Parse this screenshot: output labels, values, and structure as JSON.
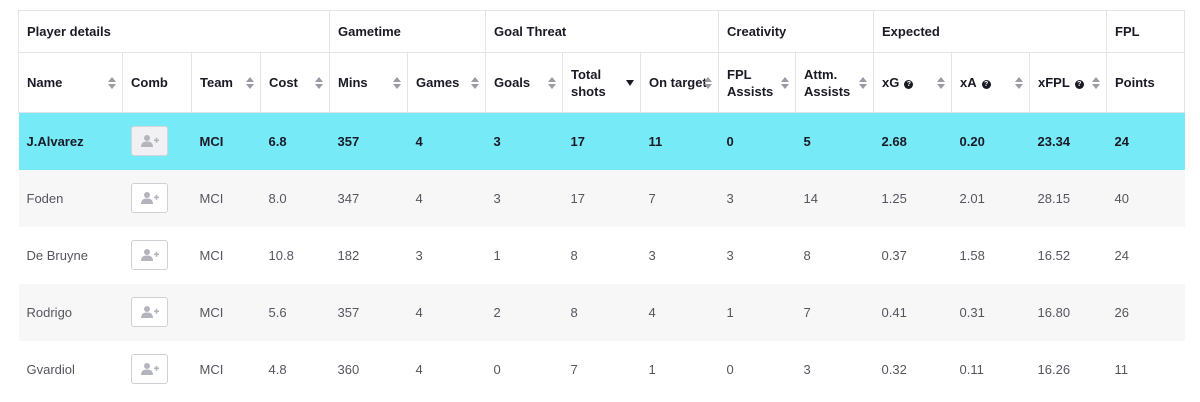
{
  "groups": [
    "Player details",
    "Gametime",
    "Goal Threat",
    "Creativity",
    "Expected",
    "FPL"
  ],
  "columns": [
    {
      "key": "name",
      "label": "Name",
      "sort": "both",
      "info": false
    },
    {
      "key": "comb",
      "label": "Comb",
      "sort": "none",
      "info": false
    },
    {
      "key": "team",
      "label": "Team",
      "sort": "both",
      "info": false
    },
    {
      "key": "cost",
      "label": "Cost",
      "sort": "both",
      "info": false
    },
    {
      "key": "mins",
      "label": "Mins",
      "sort": "both",
      "info": false
    },
    {
      "key": "games",
      "label": "Games",
      "sort": "both",
      "info": false
    },
    {
      "key": "goals",
      "label": "Goals",
      "sort": "both",
      "info": false
    },
    {
      "key": "shots",
      "label": "Total shots",
      "sort": "desc",
      "info": false
    },
    {
      "key": "ontarget",
      "label": "On target",
      "sort": "both",
      "info": false
    },
    {
      "key": "fpl_assists",
      "label": "FPL Assists",
      "sort": "both",
      "info": false
    },
    {
      "key": "attm_assists",
      "label": "Attm. Assists",
      "sort": "both",
      "info": false
    },
    {
      "key": "xg",
      "label": "xG",
      "sort": "both",
      "info": true
    },
    {
      "key": "xa",
      "label": "xA",
      "sort": "both",
      "info": true
    },
    {
      "key": "xfpl",
      "label": "xFPL",
      "sort": "both",
      "info": true
    },
    {
      "key": "points",
      "label": "Points",
      "sort": "none",
      "info": false
    }
  ],
  "rows": [
    {
      "selected": true,
      "name": "J.Alvarez",
      "team": "MCI",
      "cost": "6.8",
      "mins": "357",
      "games": "4",
      "goals": "3",
      "shots": "17",
      "ontarget": "11",
      "fpl_assists": "0",
      "attm_assists": "5",
      "xg": "2.68",
      "xa": "0.20",
      "xfpl": "23.34",
      "points": "24"
    },
    {
      "selected": false,
      "name": "Foden",
      "team": "MCI",
      "cost": "8.0",
      "mins": "347",
      "games": "4",
      "goals": "3",
      "shots": "17",
      "ontarget": "7",
      "fpl_assists": "3",
      "attm_assists": "14",
      "xg": "1.25",
      "xa": "2.01",
      "xfpl": "28.15",
      "points": "40"
    },
    {
      "selected": false,
      "name": "De Bruyne",
      "team": "MCI",
      "cost": "10.8",
      "mins": "182",
      "games": "3",
      "goals": "1",
      "shots": "8",
      "ontarget": "3",
      "fpl_assists": "3",
      "attm_assists": "8",
      "xg": "0.37",
      "xa": "1.58",
      "xfpl": "16.52",
      "points": "24"
    },
    {
      "selected": false,
      "name": "Rodrigo",
      "team": "MCI",
      "cost": "5.6",
      "mins": "357",
      "games": "4",
      "goals": "2",
      "shots": "8",
      "ontarget": "4",
      "fpl_assists": "1",
      "attm_assists": "7",
      "xg": "0.41",
      "xa": "0.31",
      "xfpl": "16.80",
      "points": "26"
    },
    {
      "selected": false,
      "name": "Gvardiol",
      "team": "MCI",
      "cost": "4.8",
      "mins": "360",
      "games": "4",
      "goals": "0",
      "shots": "7",
      "ontarget": "1",
      "fpl_assists": "0",
      "attm_assists": "3",
      "xg": "0.32",
      "xa": "0.11",
      "xfpl": "16.26",
      "points": "11"
    }
  ],
  "icons": {
    "comb": "add-user-icon",
    "info": "question-icon"
  },
  "colors": {
    "selected_row": "#76ebf7",
    "stripe": "#f7f7f8",
    "border": "#e3e3e8"
  }
}
